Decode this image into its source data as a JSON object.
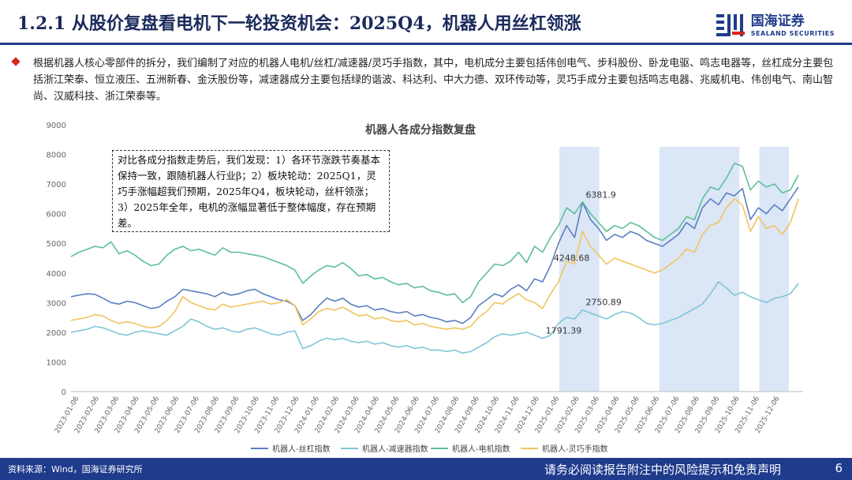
{
  "header": {
    "title": "1.2.1 从股价复盘看电机下一轮投资机会：2025Q4，机器人用丝杠领涨",
    "logo_cn": "国海证券",
    "logo_en": "SEALAND SECURITIES"
  },
  "bullet": {
    "text": "根据机器人核心零部件的拆分，我们编制了对应的机器人电机/丝杠/减速器/灵巧手指数，其中，电机成分主要包括伟创电气、步科股份、卧龙电驱、鸣志电器等，丝杠成分主要包括浙江荣泰、恒立液压、五洲新春、金沃股份等，减速器成分主要包括绿的谐波、科达利、中大力德、双环传动等，灵巧手成分主要包括鸣志电器、兆威机电、伟创电气、南山智尚、汉威科技、浙江荣泰等。"
  },
  "annotation": {
    "text": "对比各成分指数走势后，我们发现：1）各环节涨跌节奏基本保持一致，跟随机器人行业β；2）板块轮动：2025Q1，灵巧手涨幅超我们预期，2025年Q4，板块轮动，丝杆领涨；3）2025年全年，电机的涨幅显著低于整体幅度，存在预期差。"
  },
  "footer": {
    "source": "资料来源：Wind，国海证券研究所",
    "disclaimer": "请务必阅读报告附注中的风险提示和免责声明",
    "page": "6"
  },
  "chart_data": {
    "type": "line",
    "title": "机器人各成分指数复盘",
    "ylim": [
      0,
      9000
    ],
    "y_ticks": [
      0,
      1000,
      2000,
      3000,
      4000,
      5000,
      6000,
      7000,
      8000,
      9000
    ],
    "x_ticks": [
      "2023-01-06",
      "2023-02-06",
      "2023-03-06",
      "2023-04-06",
      "2023-05-06",
      "2023-06-06",
      "2023-07-06",
      "2023-08-06",
      "2023-09-06",
      "2023-10-06",
      "2023-11-06",
      "2023-12-06",
      "2024-01-06",
      "2024-02-06",
      "2024-03-06",
      "2024-04-06",
      "2024-05-06",
      "2024-06-06",
      "2024-07-06",
      "2024-08-06",
      "2024-09-06",
      "2024-10-06",
      "2024-11-06",
      "2024-12-06",
      "2025-01-06",
      "2025-02-06",
      "2025-03-06",
      "2025-04-06",
      "2025-05-06",
      "2025-06-06",
      "2025-07-06",
      "2025-08-06",
      "2025-09-06",
      "2025-10-06",
      "2025-11-06",
      "2025-12-06"
    ],
    "shaded_ranges": [
      [
        "2025-01-06",
        "2025-03-06"
      ],
      [
        "2025-06-06",
        "2025-10-06"
      ],
      [
        "2025-11-06",
        "2025-12-20"
      ]
    ],
    "legend_position": "bottom",
    "series": [
      {
        "name": "机器人-丝杠指数",
        "color": "#5b7fbf",
        "values": [
          3200,
          3250,
          3300,
          3280,
          3150,
          3000,
          2950,
          3050,
          3000,
          2900,
          2800,
          2850,
          3050,
          3200,
          3450,
          3400,
          3350,
          3300,
          3200,
          3350,
          3250,
          3300,
          3400,
          3450,
          3300,
          3200,
          3100,
          3050,
          2900,
          2400,
          2600,
          2900,
          3150,
          3050,
          3150,
          2950,
          2850,
          2900,
          2750,
          2800,
          2700,
          2650,
          2700,
          2550,
          2600,
          2500,
          2450,
          2350,
          2400,
          2300,
          2500,
          2900,
          3100,
          3300,
          3200,
          3450,
          3600,
          3400,
          3800,
          3700,
          4248.68,
          5000,
          5600,
          5200,
          6381.9,
          5800,
          5500,
          5100,
          5300,
          5200,
          5400,
          5300,
          5100,
          5000,
          4900,
          5100,
          5300,
          5700,
          5500,
          6200,
          6500,
          6300,
          6700,
          6600,
          6850,
          5800,
          6200,
          6000,
          6300,
          6100,
          6500,
          6900
        ],
        "labels": [
          {
            "index": 60,
            "text": "4248.68"
          },
          {
            "index": 64,
            "text": "6381.9"
          }
        ]
      },
      {
        "name": "机器人-减速器指数",
        "color": "#7fc6d6",
        "values": [
          2000,
          2050,
          2100,
          2200,
          2150,
          2050,
          1950,
          1900,
          2000,
          2050,
          2000,
          1950,
          1900,
          2050,
          2200,
          2450,
          2350,
          2200,
          2100,
          2150,
          2050,
          2000,
          2100,
          2150,
          2050,
          1950,
          1900,
          2000,
          2050,
          1450,
          1550,
          1700,
          1800,
          1750,
          1800,
          1700,
          1650,
          1700,
          1600,
          1650,
          1550,
          1500,
          1550,
          1450,
          1500,
          1400,
          1400,
          1350,
          1400,
          1300,
          1350,
          1500,
          1650,
          1850,
          1950,
          1900,
          1950,
          2000,
          1900,
          1791.39,
          1900,
          2300,
          2500,
          2450,
          2750.89,
          2650,
          2550,
          2450,
          2600,
          2700,
          2650,
          2500,
          2300,
          2250,
          2300,
          2400,
          2500,
          2650,
          2800,
          2950,
          3300,
          3700,
          3500,
          3250,
          3350,
          3200,
          3100,
          3000,
          3150,
          3200,
          3300,
          3650
        ],
        "labels": [
          {
            "index": 59,
            "text": "1791.39"
          },
          {
            "index": 64,
            "text": "2750.89"
          }
        ]
      },
      {
        "name": "机器人-电机指数",
        "color": "#5dbf9a",
        "values": [
          4550,
          4700,
          4800,
          4900,
          4850,
          5050,
          4650,
          4750,
          4600,
          4400,
          4250,
          4300,
          4600,
          4800,
          4900,
          4750,
          4800,
          4700,
          4600,
          4850,
          4700,
          4700,
          4650,
          4600,
          4550,
          4450,
          4350,
          4250,
          4100,
          3650,
          3900,
          4100,
          4250,
          4200,
          4350,
          4150,
          3900,
          3950,
          3800,
          3850,
          3700,
          3600,
          3650,
          3500,
          3550,
          3400,
          3350,
          3250,
          3300,
          3000,
          3200,
          3700,
          4000,
          4300,
          4250,
          4400,
          4700,
          4350,
          4900,
          4700,
          5200,
          5600,
          6200,
          6000,
          6400,
          6000,
          5700,
          5400,
          5600,
          5500,
          5700,
          5600,
          5400,
          5200,
          5100,
          5300,
          5500,
          5900,
          5800,
          6500,
          6900,
          6800,
          7200,
          7700,
          7600,
          6800,
          7100,
          6900,
          7000,
          6700,
          6800,
          7300
        ],
        "labels": []
      },
      {
        "name": "机器人-灵巧手指数",
        "color": "#f2c45f",
        "values": [
          2400,
          2450,
          2500,
          2600,
          2550,
          2400,
          2300,
          2350,
          2300,
          2200,
          2150,
          2200,
          2400,
          2700,
          3200,
          3000,
          2900,
          2800,
          2750,
          2950,
          2850,
          2900,
          2950,
          3000,
          3050,
          2950,
          3000,
          3100,
          2900,
          2250,
          2450,
          2700,
          2800,
          2750,
          2850,
          2700,
          2550,
          2600,
          2450,
          2500,
          2400,
          2350,
          2400,
          2250,
          2300,
          2200,
          2150,
          2100,
          2150,
          2100,
          2200,
          2500,
          2700,
          3000,
          2950,
          3150,
          3300,
          3100,
          3000,
          2800,
          3300,
          3700,
          4400,
          4300,
          5400,
          4900,
          4600,
          4300,
          4500,
          4400,
          4300,
          4200,
          4100,
          4000,
          4100,
          4300,
          4500,
          4800,
          4700,
          5300,
          5600,
          5700,
          6200,
          6500,
          6300,
          5400,
          5900,
          5500,
          5600,
          5300,
          5700,
          6500
        ],
        "labels": []
      }
    ]
  }
}
